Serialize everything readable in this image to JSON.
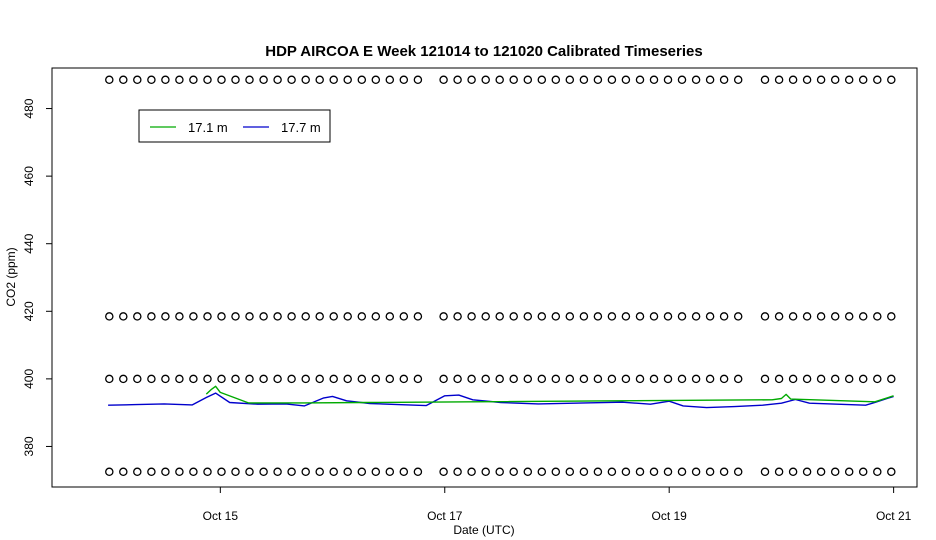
{
  "chart_data": {
    "type": "line",
    "title": "HDP AIRCOA E  Week 121014 to 121020  Calibrated Timeseries",
    "xlabel": "Date (UTC)",
    "ylabel": "CO2 (ppm)",
    "xlim": [
      "2012-10-13 12:00",
      "2012-10-21 05:00"
    ],
    "ylim": [
      368,
      492
    ],
    "x_ticks": [
      {
        "date": "2012-10-15 00:00",
        "label": "Oct 15"
      },
      {
        "date": "2012-10-17 00:00",
        "label": "Oct 17"
      },
      {
        "date": "2012-10-19 00:00",
        "label": "Oct 19"
      },
      {
        "date": "2012-10-21 00:00",
        "label": "Oct 21"
      }
    ],
    "y_ticks": [
      380,
      400,
      420,
      440,
      460,
      480
    ],
    "grid": false,
    "legend": {
      "position": "top-left",
      "entries": [
        {
          "label": "17.1 m",
          "color": "#00aa00"
        },
        {
          "label": "17.7 m",
          "color": "#0000cc"
        }
      ]
    },
    "series": [
      {
        "name": "17.7 m",
        "color": "#0000cc",
        "points": [
          [
            "2012-10-14 00:00",
            392.2
          ],
          [
            "2012-10-14 06:00",
            392.4
          ],
          [
            "2012-10-14 12:00",
            392.6
          ],
          [
            "2012-10-14 18:00",
            392.3
          ],
          [
            "2012-10-14 21:00",
            394.5
          ],
          [
            "2012-10-14 23:00",
            395.8
          ],
          [
            "2012-10-15 02:00",
            393.0
          ],
          [
            "2012-10-15 08:00",
            392.5
          ],
          [
            "2012-10-15 14:00",
            392.6
          ],
          [
            "2012-10-15 18:00",
            392.0
          ],
          [
            "2012-10-15 22:00",
            394.3
          ],
          [
            "2012-10-16 00:00",
            394.8
          ],
          [
            "2012-10-16 03:00",
            393.5
          ],
          [
            "2012-10-16 08:00",
            392.7
          ],
          [
            "2012-10-16 14:00",
            392.4
          ],
          [
            "2012-10-16 20:00",
            392.1
          ],
          [
            "2012-10-17 00:00",
            395.0
          ],
          [
            "2012-10-17 03:00",
            395.2
          ],
          [
            "2012-10-17 06:00",
            393.8
          ],
          [
            "2012-10-17 12:00",
            393.0
          ],
          [
            "2012-10-17 20:00",
            392.6
          ],
          [
            "2012-10-18 06:00",
            392.9
          ],
          [
            "2012-10-18 14:00",
            393.1
          ],
          [
            "2012-10-18 20:00",
            392.5
          ],
          [
            "2012-10-19 00:00",
            393.4
          ],
          [
            "2012-10-19 03:00",
            392.0
          ],
          [
            "2012-10-19 08:00",
            391.5
          ],
          [
            "2012-10-19 14:00",
            391.8
          ],
          [
            "2012-10-19 20:00",
            392.2
          ],
          [
            "2012-10-20 00:00",
            392.8
          ],
          [
            "2012-10-20 03:00",
            393.9
          ],
          [
            "2012-10-20 06:00",
            392.8
          ],
          [
            "2012-10-20 12:00",
            392.5
          ],
          [
            "2012-10-20 18:00",
            392.2
          ],
          [
            "2012-10-20 20:00",
            393.0
          ],
          [
            "2012-10-21 00:00",
            394.8
          ]
        ]
      },
      {
        "name": "17.1 m",
        "color": "#00aa00",
        "points": [
          [
            "2012-10-14 21:00",
            395.5
          ],
          [
            "2012-10-14 22:00",
            396.8
          ],
          [
            "2012-10-14 23:00",
            397.8
          ],
          [
            "2012-10-15 00:00",
            396.0
          ],
          [
            "2012-10-15 06:00",
            392.9
          ],
          [
            "2012-10-15 18:00",
            392.9
          ],
          [
            "2012-10-19 22:00",
            393.8
          ],
          [
            "2012-10-20 00:00",
            394.2
          ],
          [
            "2012-10-20 01:00",
            395.4
          ],
          [
            "2012-10-20 02:00",
            394.0
          ],
          [
            "2012-10-20 20:00",
            393.2
          ],
          [
            "2012-10-21 00:00",
            395.0
          ]
        ]
      }
    ],
    "flag_rows": [
      {
        "y": 488.5,
        "ranges": [
          [
            "2012-10-14 00:15",
            "2012-10-16 19:30"
          ],
          [
            "2012-10-16 23:45",
            "2012-10-19 15:00"
          ],
          [
            "2012-10-19 20:30",
            "2012-10-21 00:00"
          ]
        ]
      },
      {
        "y": 418.5,
        "ranges": [
          [
            "2012-10-14 00:15",
            "2012-10-16 19:30"
          ],
          [
            "2012-10-16 23:45",
            "2012-10-19 15:00"
          ],
          [
            "2012-10-19 20:30",
            "2012-10-21 00:00"
          ]
        ]
      },
      {
        "y": 400.0,
        "ranges": [
          [
            "2012-10-14 00:15",
            "2012-10-16 19:30"
          ],
          [
            "2012-10-16 23:45",
            "2012-10-19 15:00"
          ],
          [
            "2012-10-19 20:30",
            "2012-10-21 00:00"
          ]
        ]
      },
      {
        "y": 372.5,
        "ranges": [
          [
            "2012-10-14 00:15",
            "2012-10-16 19:30"
          ],
          [
            "2012-10-16 23:45",
            "2012-10-19 15:00"
          ],
          [
            "2012-10-19 20:30",
            "2012-10-21 00:00"
          ]
        ]
      }
    ]
  }
}
